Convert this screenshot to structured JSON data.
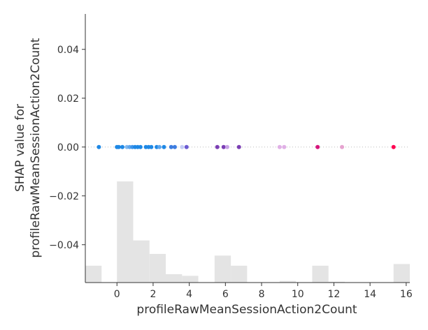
{
  "chart_data": {
    "type": "scatter",
    "xlabel": "profileRawMeanSessionAction2Count",
    "ylabel_lines": [
      "SHAP value for",
      "profileRawMeanSessionAction2Count"
    ],
    "xlim": [
      -1.75,
      16.2
    ],
    "ylim": [
      -0.0555,
      0.0545
    ],
    "xticks": [
      0,
      2,
      4,
      6,
      8,
      10,
      12,
      14,
      16
    ],
    "yticks": [
      0.04,
      0.02,
      0.0,
      -0.02,
      -0.04
    ],
    "xtick_labels": [
      "0",
      "2",
      "4",
      "6",
      "8",
      "10",
      "12",
      "14",
      "16"
    ],
    "ytick_labels": [
      "0.04",
      "0.02",
      "0.00",
      "−0.02",
      "−0.04"
    ],
    "zero_line": true,
    "histogram": {
      "color": "#e4e4e4",
      "bin_edges": [
        -1.75,
        -0.85,
        0.0,
        0.9,
        1.8,
        2.7,
        3.6,
        4.5,
        5.4,
        6.3,
        7.2,
        8.1,
        9.0,
        9.9,
        10.8,
        11.7,
        12.6,
        13.5,
        14.4,
        15.3,
        16.2
      ],
      "counts": [
        1,
        0,
        6,
        2.5,
        1.7,
        0.5,
        0.4,
        0,
        1.6,
        1,
        0,
        0,
        0.1,
        0,
        1,
        0.05,
        0,
        0,
        0,
        1.1
      ],
      "max_count": 6
    },
    "points": [
      {
        "x": -1.0,
        "y": 0.0,
        "color": "#1e88e5"
      },
      {
        "x": 0.0,
        "y": 0.0,
        "color": "#1e88e5"
      },
      {
        "x": 0.1,
        "y": 0.0,
        "color": "#1e88e5"
      },
      {
        "x": 0.3,
        "y": 0.0,
        "color": "#1e88e5"
      },
      {
        "x": 0.55,
        "y": 0.0,
        "color": "#7fb8f0"
      },
      {
        "x": 0.7,
        "y": 0.0,
        "color": "#5ea6ee"
      },
      {
        "x": 0.85,
        "y": 0.0,
        "color": "#3d94eb"
      },
      {
        "x": 1.0,
        "y": 0.0,
        "color": "#1e88e5"
      },
      {
        "x": 1.15,
        "y": 0.0,
        "color": "#1e88e5"
      },
      {
        "x": 1.3,
        "y": 0.0,
        "color": "#1e88e5"
      },
      {
        "x": 1.6,
        "y": 0.0,
        "color": "#1e88e5"
      },
      {
        "x": 1.75,
        "y": 0.0,
        "color": "#1e88e5"
      },
      {
        "x": 1.9,
        "y": 0.0,
        "color": "#1e88e5"
      },
      {
        "x": 2.2,
        "y": 0.0,
        "color": "#1e88e5"
      },
      {
        "x": 2.35,
        "y": 0.0,
        "color": "#5ea6ee"
      },
      {
        "x": 2.6,
        "y": 0.0,
        "color": "#1e88e5"
      },
      {
        "x": 3.0,
        "y": 0.0,
        "color": "#3d7de0"
      },
      {
        "x": 3.2,
        "y": 0.0,
        "color": "#3d7de0"
      },
      {
        "x": 3.6,
        "y": 0.0,
        "color": "#c4ccf5"
      },
      {
        "x": 3.85,
        "y": 0.0,
        "color": "#6b5bd2"
      },
      {
        "x": 5.55,
        "y": 0.0,
        "color": "#7b3fb4"
      },
      {
        "x": 5.9,
        "y": 0.0,
        "color": "#7b3fb4"
      },
      {
        "x": 6.1,
        "y": 0.0,
        "color": "#c8a3e6"
      },
      {
        "x": 6.75,
        "y": 0.0,
        "color": "#7b3fb4"
      },
      {
        "x": 9.0,
        "y": 0.0,
        "color": "#e0b0e6"
      },
      {
        "x": 9.25,
        "y": 0.0,
        "color": "#e0b0e6"
      },
      {
        "x": 11.1,
        "y": 0.0,
        "color": "#d6157c"
      },
      {
        "x": 12.45,
        "y": 0.0,
        "color": "#e6a3d0"
      },
      {
        "x": 15.3,
        "y": 0.0,
        "color": "#ff0051"
      }
    ]
  }
}
